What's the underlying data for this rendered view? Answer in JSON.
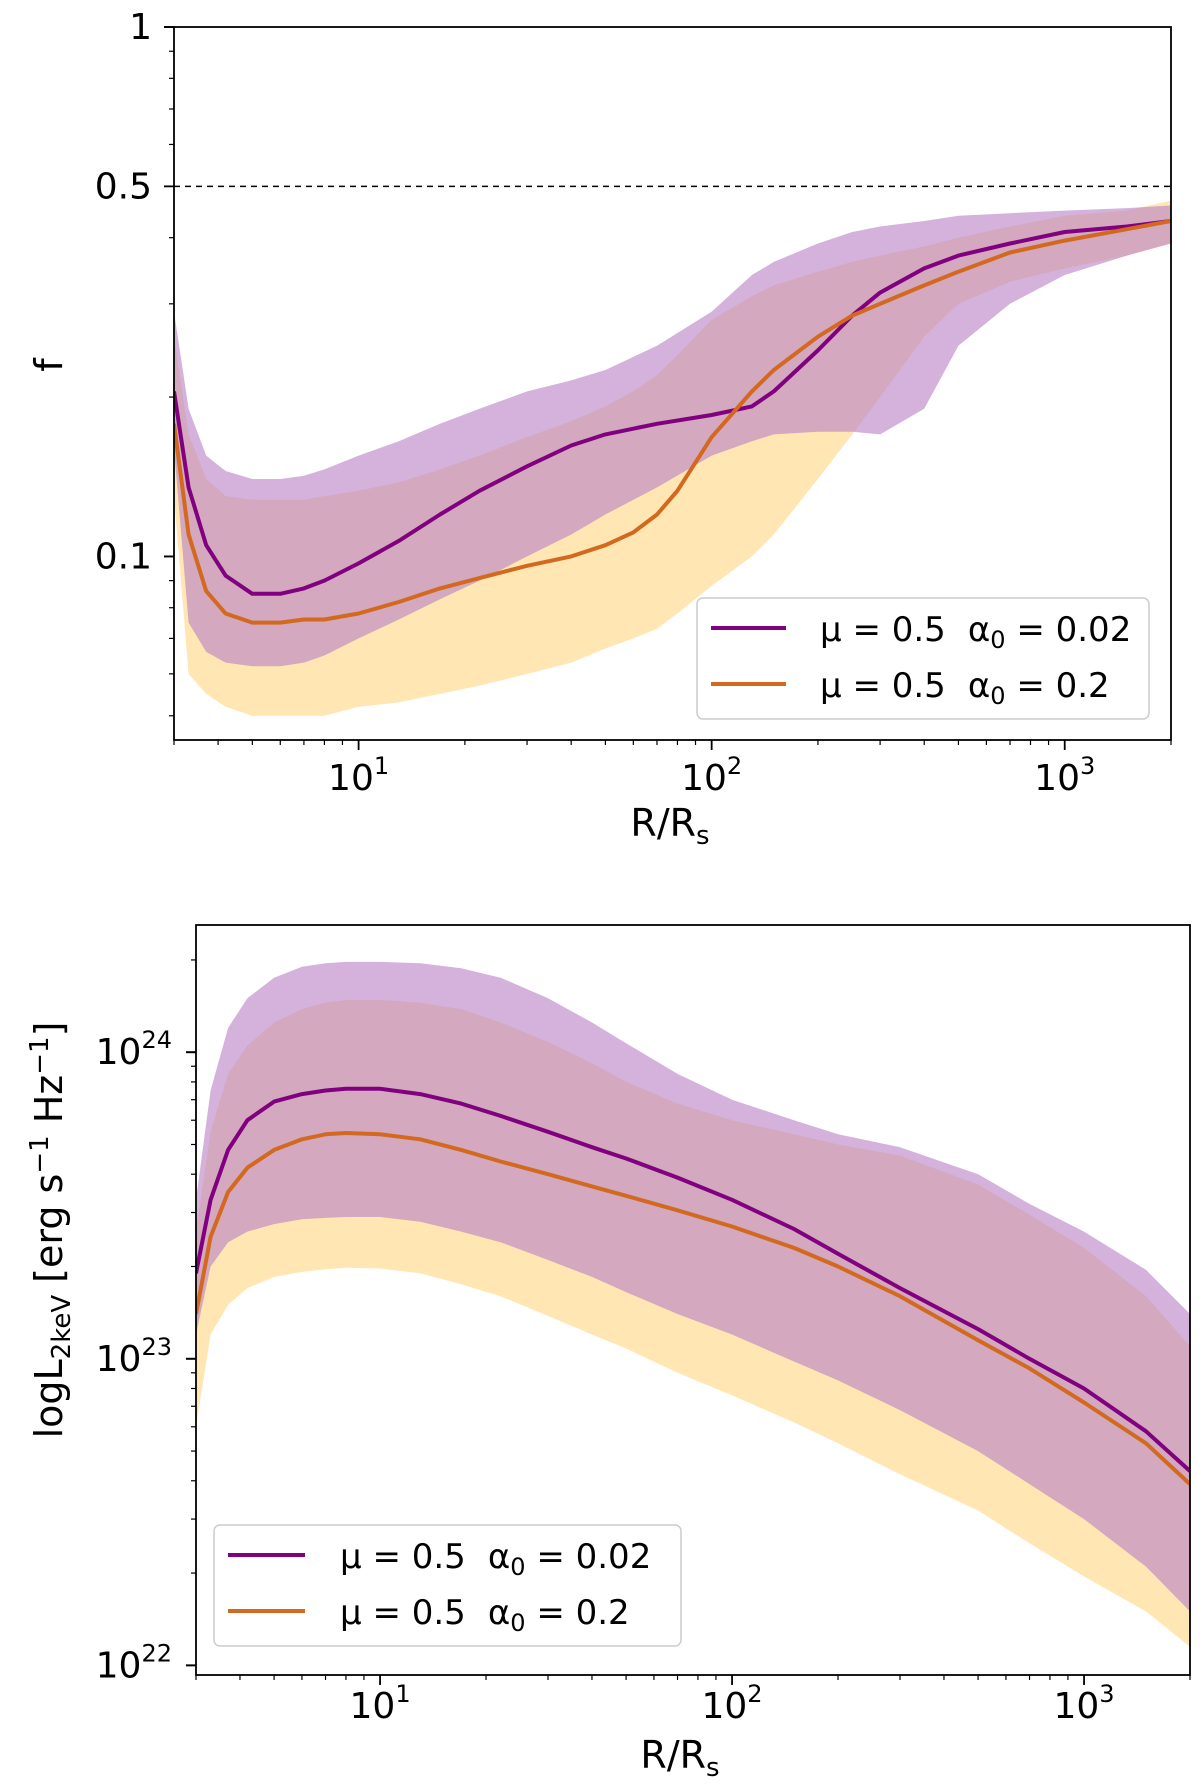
{
  "chart_data": [
    {
      "type": "line",
      "panel": "top",
      "xlabel": "R/R",
      "xlabel_sub": "s",
      "ylabel": "f",
      "xscale": "log",
      "yscale": "log",
      "xlim": [
        3,
        2000
      ],
      "ylim": [
        0.045,
        1.0
      ],
      "xticks": [
        {
          "value": 10,
          "base": "10",
          "exp": "1"
        },
        {
          "value": 100,
          "base": "10",
          "exp": "2"
        },
        {
          "value": 1000,
          "base": "10",
          "exp": "3"
        }
      ],
      "yticks": [
        {
          "value": 0.1,
          "label": "0.1"
        },
        {
          "value": 0.5,
          "label": "0.5"
        },
        {
          "value": 1.0,
          "label": "1"
        }
      ],
      "reference_line": {
        "y": 0.5,
        "style": "dashed",
        "color": "#000000"
      },
      "legend_position": "lower-right",
      "series": [
        {
          "name": "μ = 0.5  α0 = 0.02",
          "legend_mu": "μ = 0.5",
          "legend_alpha": "α",
          "legend_alpha_sub": "0",
          "legend_alpha_val": " = 0.02",
          "color": "#800080",
          "band_color": "#b77fc4",
          "x": [
            3,
            3.3,
            3.7,
            4.2,
            5,
            6,
            7,
            8,
            10,
            13,
            17,
            22,
            30,
            40,
            50,
            70,
            100,
            130,
            150,
            200,
            250,
            300,
            400,
            500,
            700,
            1000,
            1500,
            2000
          ],
          "y": [
            0.205,
            0.135,
            0.105,
            0.092,
            0.085,
            0.085,
            0.087,
            0.09,
            0.097,
            0.107,
            0.12,
            0.133,
            0.148,
            0.162,
            0.17,
            0.178,
            0.185,
            0.192,
            0.205,
            0.245,
            0.285,
            0.315,
            0.35,
            0.37,
            0.39,
            0.41,
            0.42,
            0.43
          ],
          "upper": [
            0.29,
            0.19,
            0.155,
            0.145,
            0.14,
            0.14,
            0.142,
            0.146,
            0.155,
            0.165,
            0.178,
            0.19,
            0.205,
            0.215,
            0.225,
            0.25,
            0.29,
            0.34,
            0.36,
            0.39,
            0.41,
            0.42,
            0.43,
            0.44,
            0.445,
            0.45,
            0.455,
            0.46
          ],
          "lower": [
            0.16,
            0.075,
            0.066,
            0.063,
            0.062,
            0.062,
            0.063,
            0.065,
            0.07,
            0.076,
            0.083,
            0.09,
            0.1,
            0.11,
            0.12,
            0.135,
            0.155,
            0.165,
            0.17,
            0.172,
            0.172,
            0.17,
            0.19,
            0.25,
            0.3,
            0.34,
            0.37,
            0.39
          ]
        },
        {
          "name": "μ = 0.5  α0 = 0.2",
          "legend_mu": "μ = 0.5",
          "legend_alpha": "α",
          "legend_alpha_sub": "0",
          "legend_alpha_val": " = 0.2",
          "color": "#d2691e",
          "band_color": "#ffd98a",
          "x": [
            3,
            3.3,
            3.7,
            4.2,
            5,
            6,
            7,
            8,
            10,
            13,
            17,
            22,
            30,
            40,
            50,
            60,
            70,
            80,
            100,
            130,
            150,
            200,
            250,
            300,
            400,
            500,
            700,
            1000,
            1500,
            2000
          ],
          "y": [
            0.178,
            0.11,
            0.086,
            0.078,
            0.075,
            0.075,
            0.076,
            0.076,
            0.078,
            0.082,
            0.087,
            0.091,
            0.096,
            0.1,
            0.105,
            0.111,
            0.12,
            0.133,
            0.168,
            0.205,
            0.225,
            0.26,
            0.285,
            0.3,
            0.325,
            0.345,
            0.375,
            0.395,
            0.415,
            0.43
          ],
          "upper": [
            0.26,
            0.17,
            0.14,
            0.13,
            0.128,
            0.128,
            0.128,
            0.13,
            0.133,
            0.138,
            0.146,
            0.155,
            0.168,
            0.18,
            0.192,
            0.205,
            0.22,
            0.24,
            0.28,
            0.31,
            0.325,
            0.345,
            0.36,
            0.37,
            0.385,
            0.4,
            0.42,
            0.44,
            0.45,
            0.47
          ],
          "lower": [
            0.13,
            0.06,
            0.055,
            0.052,
            0.05,
            0.05,
            0.05,
            0.05,
            0.052,
            0.053,
            0.055,
            0.057,
            0.06,
            0.063,
            0.067,
            0.07,
            0.073,
            0.078,
            0.088,
            0.1,
            0.11,
            0.14,
            0.17,
            0.2,
            0.26,
            0.3,
            0.33,
            0.35,
            0.37,
            0.39
          ]
        }
      ]
    },
    {
      "type": "line",
      "panel": "bottom",
      "xlabel": "R/R",
      "xlabel_sub": "s",
      "ylabel": "logL",
      "ylabel_sub": "2keV",
      "ylabel_units": "[erg s",
      "ylabel_units_sup1": "−1",
      "ylabel_units_mid": " Hz",
      "ylabel_units_sup2": "−1",
      "ylabel_units_end": "]",
      "xscale": "log",
      "yscale": "log",
      "xlim": [
        3,
        2000
      ],
      "ylim": [
        9.3e+21,
        2.6e+24
      ],
      "xticks": [
        {
          "value": 10,
          "base": "10",
          "exp": "1"
        },
        {
          "value": 100,
          "base": "10",
          "exp": "2"
        },
        {
          "value": 1000,
          "base": "10",
          "exp": "3"
        }
      ],
      "yticks": [
        {
          "value": 1e+22,
          "base": "10",
          "exp": "22"
        },
        {
          "value": 1e+23,
          "base": "10",
          "exp": "23"
        },
        {
          "value": 1e+24,
          "base": "10",
          "exp": "24"
        }
      ],
      "legend_position": "lower-left",
      "series": [
        {
          "name": "μ = 0.5  α0 = 0.02",
          "legend_mu": "μ = 0.5",
          "legend_alpha": "α",
          "legend_alpha_sub": "0",
          "legend_alpha_val": " = 0.02",
          "color": "#800080",
          "band_color": "#b77fc4",
          "x": [
            3,
            3.3,
            3.7,
            4.2,
            5,
            6,
            7,
            8,
            10,
            13,
            17,
            22,
            30,
            40,
            50,
            70,
            100,
            150,
            200,
            300,
            500,
            700,
            1000,
            1500,
            2000
          ],
          "y": [
            1.9e+23,
            3.3e+23,
            4.8e+23,
            6e+23,
            6.9e+23,
            7.3e+23,
            7.5e+23,
            7.6e+23,
            7.6e+23,
            7.3e+23,
            6.8e+23,
            6.2e+23,
            5.5e+23,
            4.9e+23,
            4.5e+23,
            3.9e+23,
            3.3e+23,
            2.65e+23,
            2.2e+23,
            1.7e+23,
            1.25e+23,
            1e+23,
            8e+22,
            5.8e+22,
            4.3e+22
          ],
          "upper": [
            3.3e+23,
            7.5e+23,
            1.2e+24,
            1.5e+24,
            1.75e+24,
            1.9e+24,
            1.95e+24,
            1.97e+24,
            1.97e+24,
            1.95e+24,
            1.88e+24,
            1.75e+24,
            1.5e+24,
            1.25e+24,
            1.07e+24,
            8.5e+23,
            7e+23,
            6e+23,
            5.4e+23,
            4.9e+23,
            4e+23,
            3.2e+23,
            2.6e+23,
            1.95e+23,
            1.4e+23
          ],
          "lower": [
            1.2e+23,
            2e+23,
            2.4e+23,
            2.6e+23,
            2.75e+23,
            2.85e+23,
            2.88e+23,
            2.9e+23,
            2.9e+23,
            2.8e+23,
            2.6e+23,
            2.4e+23,
            2.1e+23,
            1.85e+23,
            1.65e+23,
            1.4e+23,
            1.2e+23,
            9.8e+22,
            8.5e+22,
            6.8e+22,
            5e+22,
            3.9e+22,
            3e+22,
            2.1e+22,
            1.5e+22
          ]
        },
        {
          "name": "μ = 0.5  α0 = 0.2",
          "legend_mu": "μ = 0.5",
          "legend_alpha": "α",
          "legend_alpha_sub": "0",
          "legend_alpha_val": " = 0.2",
          "color": "#d2691e",
          "band_color": "#ffd98a",
          "x": [
            3,
            3.3,
            3.7,
            4.2,
            5,
            6,
            7,
            8,
            10,
            13,
            17,
            22,
            30,
            40,
            50,
            70,
            100,
            150,
            200,
            300,
            500,
            700,
            1000,
            1500,
            2000
          ],
          "y": [
            1.4e+23,
            2.5e+23,
            3.5e+23,
            4.2e+23,
            4.8e+23,
            5.2e+23,
            5.4e+23,
            5.45e+23,
            5.4e+23,
            5.2e+23,
            4.8e+23,
            4.4e+23,
            4e+23,
            3.65e+23,
            3.4e+23,
            3.05e+23,
            2.7e+23,
            2.3e+23,
            2e+23,
            1.6e+23,
            1.15e+23,
            9.3e+22,
            7.2e+22,
            5.3e+22,
            3.9e+22
          ],
          "upper": [
            2.6e+23,
            5.5e+23,
            8.5e+23,
            1.05e+24,
            1.25e+24,
            1.38e+24,
            1.45e+24,
            1.48e+24,
            1.48e+24,
            1.45e+24,
            1.38e+24,
            1.25e+24,
            1.08e+24,
            9.2e+23,
            8e+23,
            6.8e+23,
            6e+23,
            5.4e+23,
            5e+23,
            4.6e+23,
            3.7e+23,
            2.95e+23,
            2.3e+23,
            1.6e+23,
            1.1e+23
          ],
          "lower": [
            6e+22,
            1.2e+23,
            1.5e+23,
            1.7e+23,
            1.85e+23,
            1.92e+23,
            1.96e+23,
            1.98e+23,
            1.97e+23,
            1.9e+23,
            1.75e+23,
            1.6e+23,
            1.38e+23,
            1.2e+23,
            1.08e+23,
            9e+22,
            7.6e+22,
            6.2e+22,
            5.3e+22,
            4.2e+22,
            3.2e+22,
            2.5e+22,
            1.95e+22,
            1.5e+22,
            1.15e+22
          ]
        }
      ]
    }
  ]
}
